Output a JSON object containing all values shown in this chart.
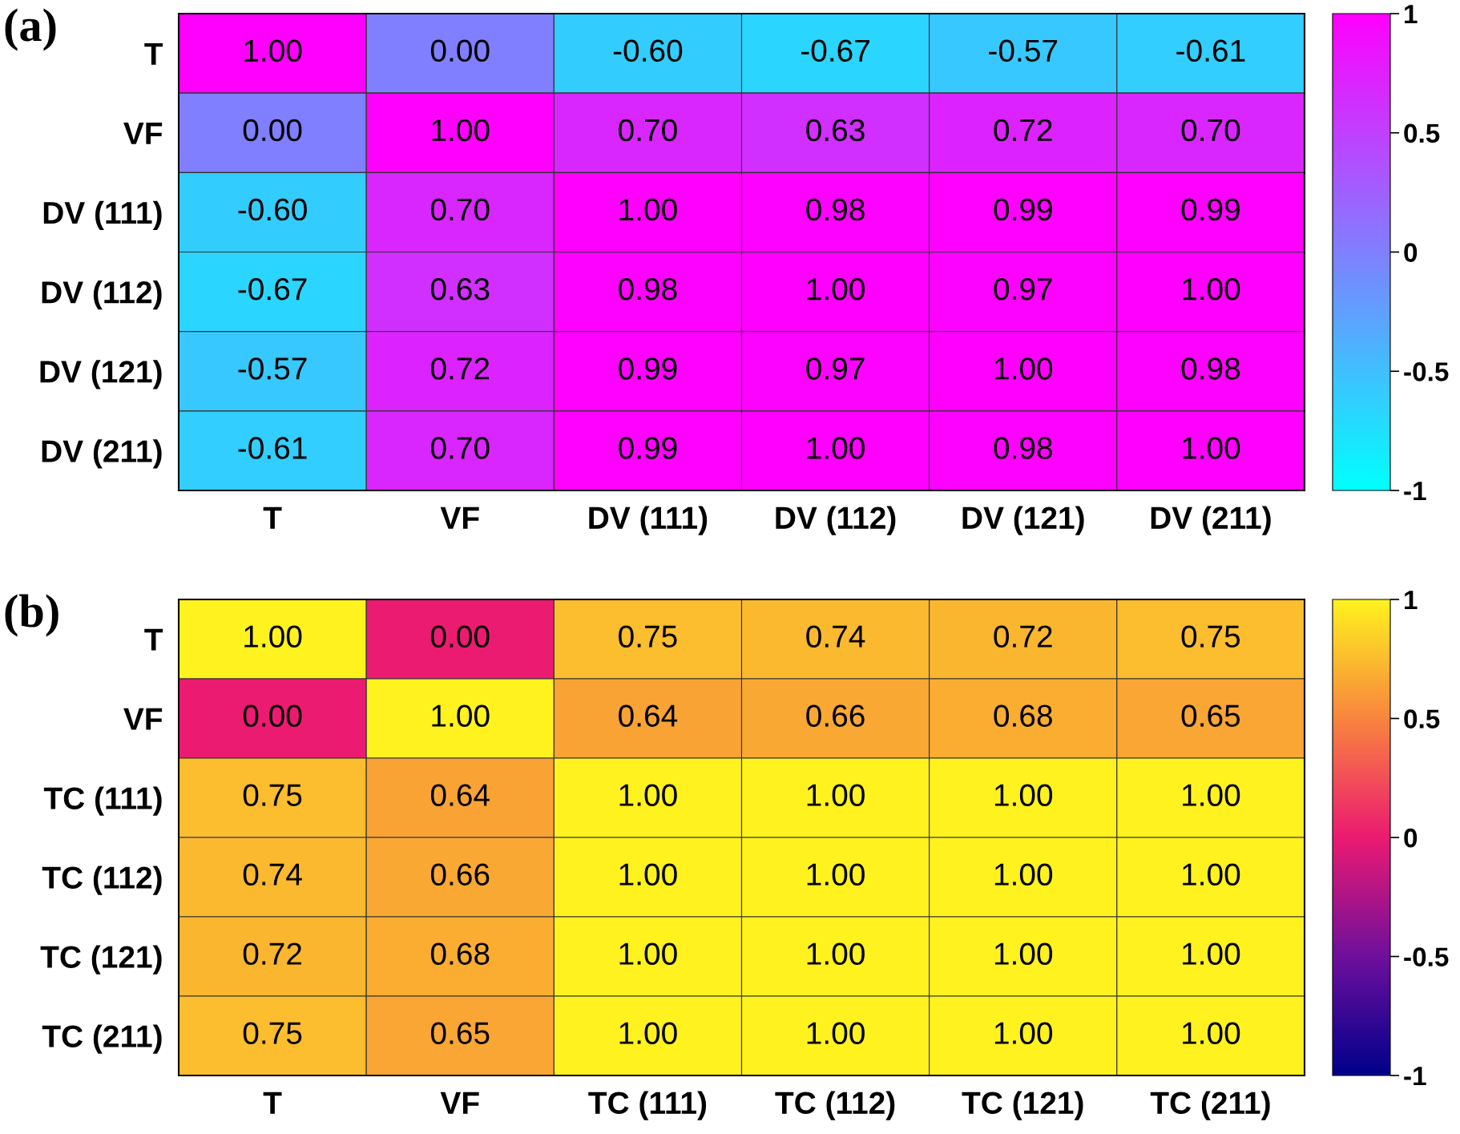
{
  "chart_data": [
    {
      "type": "heatmap",
      "title": "(a)",
      "categories": [
        "T",
        "VF",
        "DV (111)",
        "DV (112)",
        "DV (121)",
        "DV (211)"
      ],
      "y_categories": [
        "T",
        "VF",
        "DV (111)",
        "DV (112)",
        "DV (121)",
        "DV (211)"
      ],
      "cells": [
        [
          1.0,
          0.0,
          -0.6,
          -0.67,
          -0.57,
          -0.61
        ],
        [
          0.0,
          1.0,
          0.7,
          0.63,
          0.72,
          0.7
        ],
        [
          -0.6,
          0.7,
          1.0,
          0.98,
          0.99,
          0.99
        ],
        [
          -0.67,
          0.63,
          0.98,
          1.0,
          0.97,
          1.0
        ],
        [
          -0.57,
          0.72,
          0.99,
          0.97,
          1.0,
          0.98
        ],
        [
          -0.61,
          0.7,
          0.99,
          1.0,
          0.98,
          1.0
        ]
      ],
      "cell_labels": [
        [
          "1.00",
          "0.00",
          "-0.60",
          "-0.67",
          "-0.57",
          "-0.61"
        ],
        [
          "0.00",
          "1.00",
          "0.70",
          "0.63",
          "0.72",
          "0.70"
        ],
        [
          "-0.60",
          "0.70",
          "1.00",
          "0.98",
          "0.99",
          "0.99"
        ],
        [
          "-0.67",
          "0.63",
          "0.98",
          "1.00",
          "0.97",
          "1.00"
        ],
        [
          "-0.57",
          "0.72",
          "0.99",
          "0.97",
          "1.00",
          "0.98"
        ],
        [
          "-0.61",
          "0.70",
          "0.99",
          "1.00",
          "0.98",
          "1.00"
        ]
      ],
      "colors": [
        "#00ffff",
        "#ff00ff"
      ],
      "clim": [
        -1,
        1
      ],
      "cticks": [
        -1,
        -0.5,
        0,
        0.5,
        1
      ],
      "grid": false
    },
    {
      "type": "heatmap",
      "title": "(b)",
      "categories": [
        "T",
        "VF",
        "TC (111)",
        "TC (112)",
        "TC (121)",
        "TC (211)"
      ],
      "y_categories": [
        "T",
        "VF",
        "TC (111)",
        "TC (112)",
        "TC (121)",
        "TC (211)"
      ],
      "cells": [
        [
          1.0,
          0.0,
          0.75,
          0.74,
          0.72,
          0.75
        ],
        [
          0.0,
          1.0,
          0.64,
          0.66,
          0.68,
          0.65
        ],
        [
          0.75,
          0.64,
          1.0,
          1.0,
          1.0,
          1.0
        ],
        [
          0.74,
          0.66,
          1.0,
          1.0,
          1.0,
          1.0
        ],
        [
          0.72,
          0.68,
          1.0,
          1.0,
          1.0,
          1.0
        ],
        [
          0.75,
          0.65,
          1.0,
          1.0,
          1.0,
          1.0
        ]
      ],
      "cell_labels": [
        [
          "1.00",
          "0.00",
          "0.75",
          "0.74",
          "0.72",
          "0.75"
        ],
        [
          "0.00",
          "1.00",
          "0.64",
          "0.66",
          "0.68",
          "0.65"
        ],
        [
          "0.75",
          "0.64",
          "1.00",
          "1.00",
          "1.00",
          "1.00"
        ],
        [
          "0.74",
          "0.66",
          "1.00",
          "1.00",
          "1.00",
          "1.00"
        ],
        [
          "0.72",
          "0.68",
          "1.00",
          "1.00",
          "1.00",
          "1.00"
        ],
        [
          "0.75",
          "0.65",
          "1.00",
          "1.00",
          "1.00",
          "1.00"
        ]
      ],
      "colors": [
        "#00008b",
        "#6e0f9c",
        "#ec1a72",
        "#f8843e",
        "#fff21f"
      ],
      "clim": [
        -1,
        1
      ],
      "cticks": [
        -1,
        -0.5,
        0,
        0.5,
        1
      ],
      "grid": false
    }
  ]
}
